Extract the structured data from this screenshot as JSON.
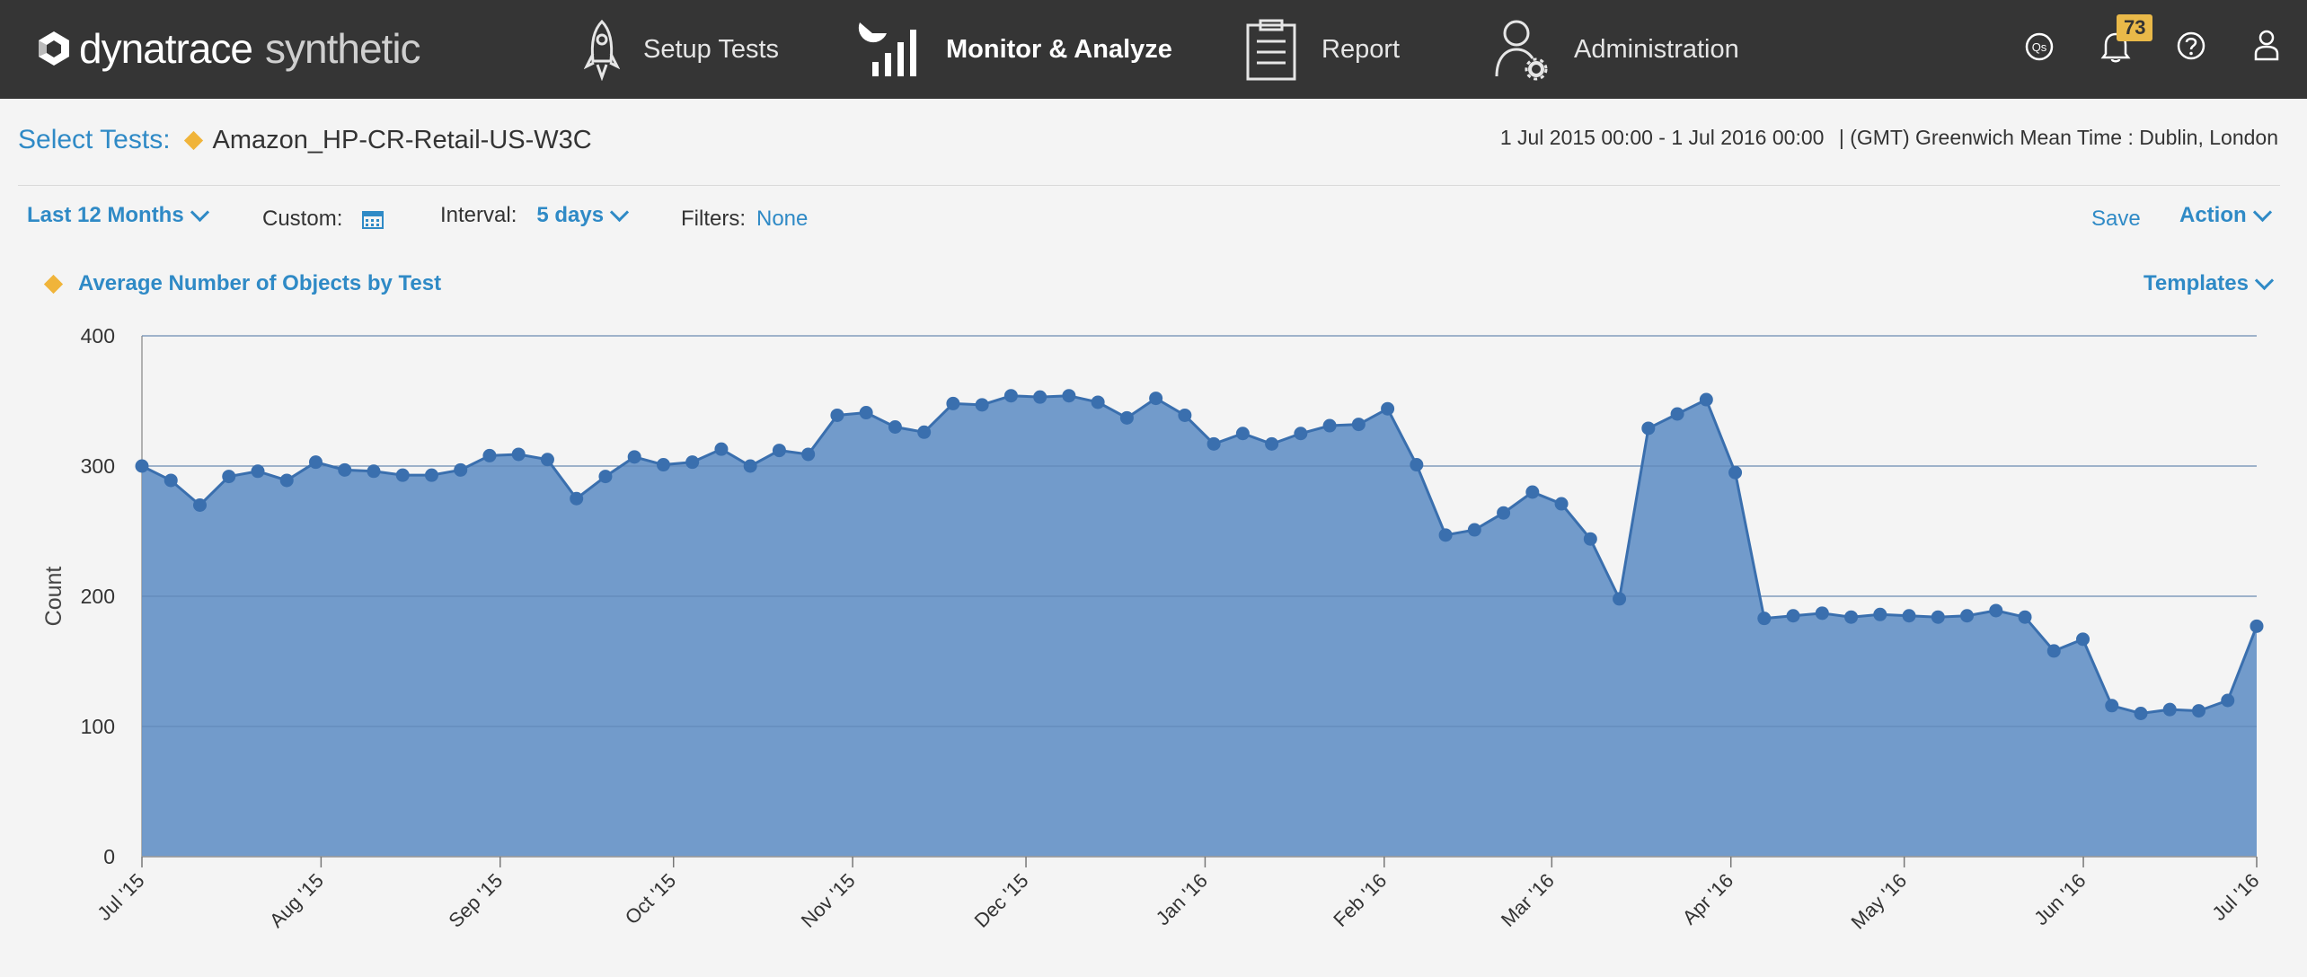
{
  "header": {
    "logo_primary": "dynatrace",
    "logo_secondary": "synthetic",
    "nav": [
      {
        "label": "Setup Tests",
        "icon": "rocket-icon"
      },
      {
        "label": "Monitor & Analyze",
        "icon": "bar-chart-icon",
        "active": true
      },
      {
        "label": "Report",
        "icon": "clipboard-icon"
      },
      {
        "label": "Administration",
        "icon": "user-gear-icon"
      }
    ],
    "qs_label": "Qs",
    "notification_count": "73"
  },
  "selection": {
    "select_label": "Select Tests:",
    "test_name": "Amazon_HP-CR-Retail-US-W3C",
    "date_range": "1 Jul 2015 00:00 - 1 Jul 2016 00:00",
    "timezone": "|  (GMT) Greenwich Mean Time : Dublin, London"
  },
  "toolbar": {
    "period": "Last 12 Months",
    "custom_label": "Custom:",
    "interval_label": "Interval:",
    "interval_value": "5 days",
    "filters_label": "Filters:",
    "filters_value": "None",
    "save_label": "Save",
    "action_label": "Action"
  },
  "chart_title": "Average Number of Objects by Test",
  "templates_label": "Templates",
  "colors": {
    "accent": "#2f8ac6",
    "area_fill": "#6a96c8",
    "line": "#3a6fae",
    "diamond": "#f0b43a",
    "header_bg": "#353535"
  },
  "chart_data": {
    "type": "area",
    "ylabel": "Count",
    "ylim": [
      0,
      400
    ],
    "yticks": [
      0,
      100,
      200,
      300,
      400
    ],
    "x_start": "1 Jul 2015",
    "x_end": "1 Jul 2016",
    "xticks": [
      "Jul '15",
      "Aug '15",
      "Sep '15",
      "Oct '15",
      "Nov '15",
      "Dec '15",
      "Jan '16",
      "Feb '16",
      "Mar '16",
      "Apr '16",
      "May '16",
      "Jun '16",
      "Jul '16"
    ],
    "series": [
      {
        "values": [
          300,
          289,
          270,
          292,
          296,
          289,
          303,
          297,
          296,
          293,
          293,
          297,
          308,
          309,
          305,
          275,
          292,
          307,
          301,
          303,
          313,
          300,
          312,
          309,
          339,
          341,
          330,
          326,
          348,
          347,
          354,
          353,
          354,
          349,
          337,
          352,
          339,
          317,
          325,
          317,
          325,
          331,
          332,
          344,
          301,
          247,
          251,
          264,
          280,
          271,
          244,
          198,
          329,
          340,
          351,
          295,
          183,
          185,
          187,
          184,
          186,
          185,
          184,
          185,
          189,
          184,
          158,
          167,
          116,
          110,
          113,
          112,
          120,
          177
        ]
      }
    ]
  }
}
